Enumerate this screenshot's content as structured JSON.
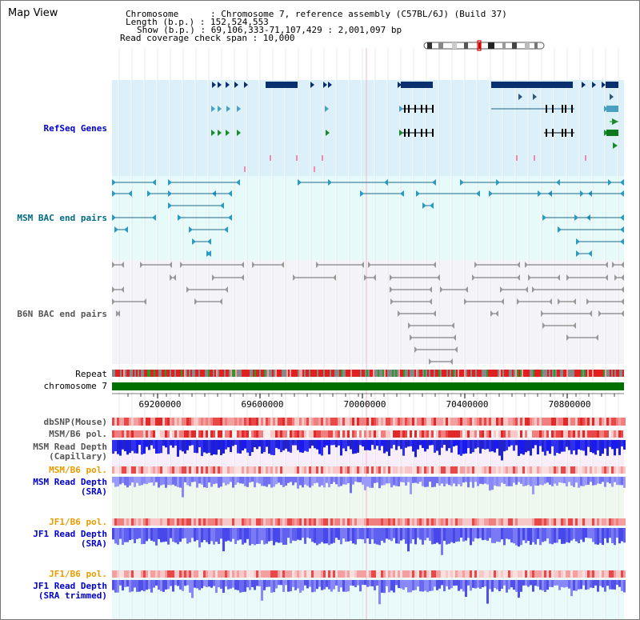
{
  "title": "Map View",
  "info": {
    "chromosome": "Chromosome      : Chromosome 7, reference assembly (C57BL/6J) (Build 37)",
    "length": "Length (b.p.) : 152,524,553",
    "show": "Show (b.p.) : 69,106,333-71,107,429 : 2,001,097 bp",
    "coverage": "Read coverage check span : 10,000"
  },
  "tracks": {
    "refseq": "RefSeq Genes",
    "msm_bac": "MSM BAC end pairs",
    "b6n_bac": "B6N BAC end pairs",
    "repeat": "Repeat",
    "chromosome": "chromosome 7",
    "dbsnp": "dbSNP(Mouse)",
    "msm_b6_pol_1": "MSM/B6 pol.",
    "msm_read_depth_cap_1": "MSM Read Depth",
    "msm_read_depth_cap_2": "(Capillary)",
    "msm_b6_pol_2": "MSM/B6 pol.",
    "msm_read_depth_sra_1": "MSM Read Depth",
    "msm_read_depth_sra_2": "(SRA)",
    "jf1_b6_pol_1": "JF1/B6 pol.",
    "jf1_read_depth_sra_1": "JF1 Read Depth",
    "jf1_read_depth_sra_2": "(SRA)",
    "jf1_b6_pol_2": "JF1/B6 pol.",
    "jf1_read_depth_trim_1": "JF1 Read Depth",
    "jf1_read_depth_trim_2": "(SRA trimmed)"
  },
  "axis": {
    "ticks": [
      "69200000",
      "69600000",
      "70000000",
      "70400000",
      "70800000"
    ]
  },
  "colors": {
    "refseq_bg": "#dcf0fa",
    "msm_bac_bg": "#e6fafa",
    "b6n_bac_bg": "#f4f4f8",
    "chromosome_bar": "#007000",
    "dark_gene": "#0a2f6e",
    "depth_blue": "#1a1aee",
    "depth_light": "#8888f8"
  }
}
